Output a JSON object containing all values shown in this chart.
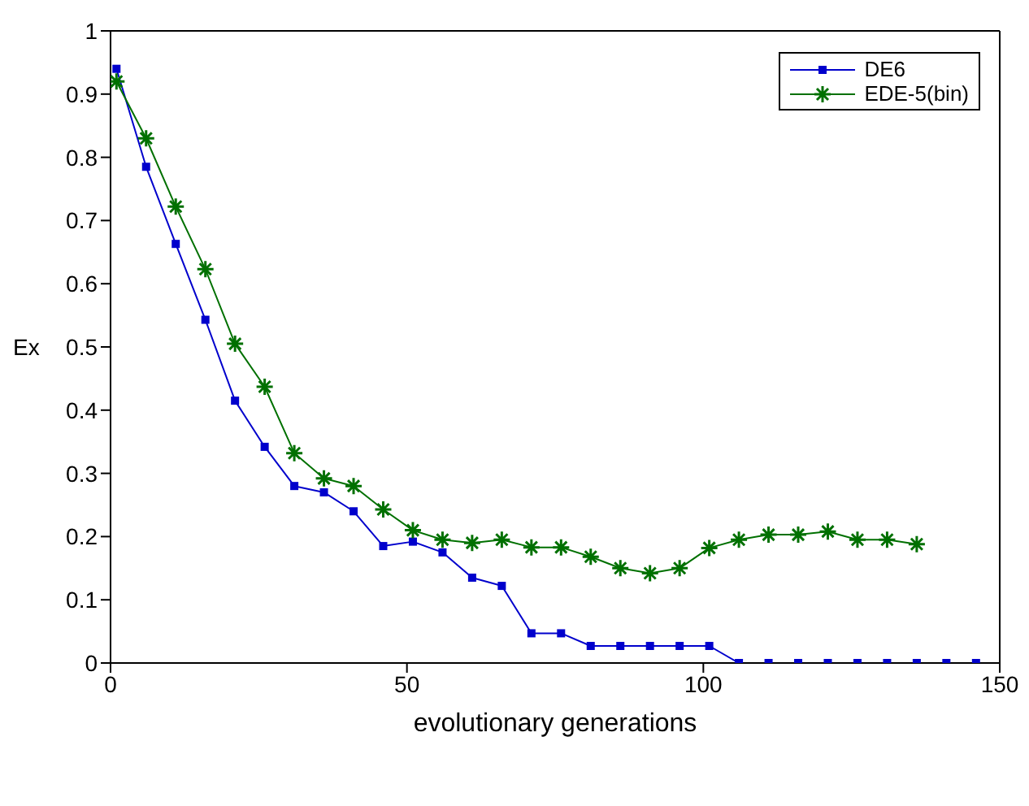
{
  "chart_data": {
    "type": "line",
    "xlabel": "evolutionary generations",
    "ylabel": "Ex",
    "xlim": [
      0,
      150
    ],
    "xticks": [
      0,
      50,
      100,
      150
    ],
    "ylim": [
      0,
      1
    ],
    "yticks": [
      0,
      0.1,
      0.2,
      0.3,
      0.4,
      0.5,
      0.6,
      0.7,
      0.8,
      0.9,
      1
    ],
    "grid": false,
    "legend": "top right",
    "line_style": "solid",
    "x": [
      1,
      6,
      11,
      16,
      21,
      26,
      31,
      36,
      41,
      46,
      51,
      56,
      61,
      66,
      71,
      76,
      81,
      86,
      91,
      96,
      101,
      106,
      111,
      116,
      121,
      126,
      131,
      136,
      141,
      146
    ],
    "series": [
      {
        "name": "DE6",
        "color": "#0000cc",
        "marker": "square",
        "values": [
          0.94,
          0.785,
          0.663,
          0.543,
          0.415,
          0.342,
          0.28,
          0.27,
          0.24,
          0.185,
          0.192,
          0.175,
          0.135,
          0.122,
          0.047,
          0.047,
          0.027,
          0.027,
          0.027,
          0.027,
          0.027,
          0,
          0,
          0,
          0,
          0,
          0,
          0,
          0,
          0
        ]
      },
      {
        "name": "EDE-5(bin)",
        "color": "#007000",
        "marker": "cross",
        "values": [
          0.92,
          0.83,
          0.722,
          0.623,
          0.505,
          0.437,
          0.332,
          0.292,
          0.28,
          0.243,
          0.21,
          0.195,
          0.19,
          0.195,
          0.183,
          0.183,
          0.168,
          0.15,
          0.142,
          0.15,
          0.182,
          0.195,
          0.203,
          0.203,
          0.208,
          0.195,
          0.195,
          0.188,
          null,
          null
        ]
      }
    ]
  }
}
